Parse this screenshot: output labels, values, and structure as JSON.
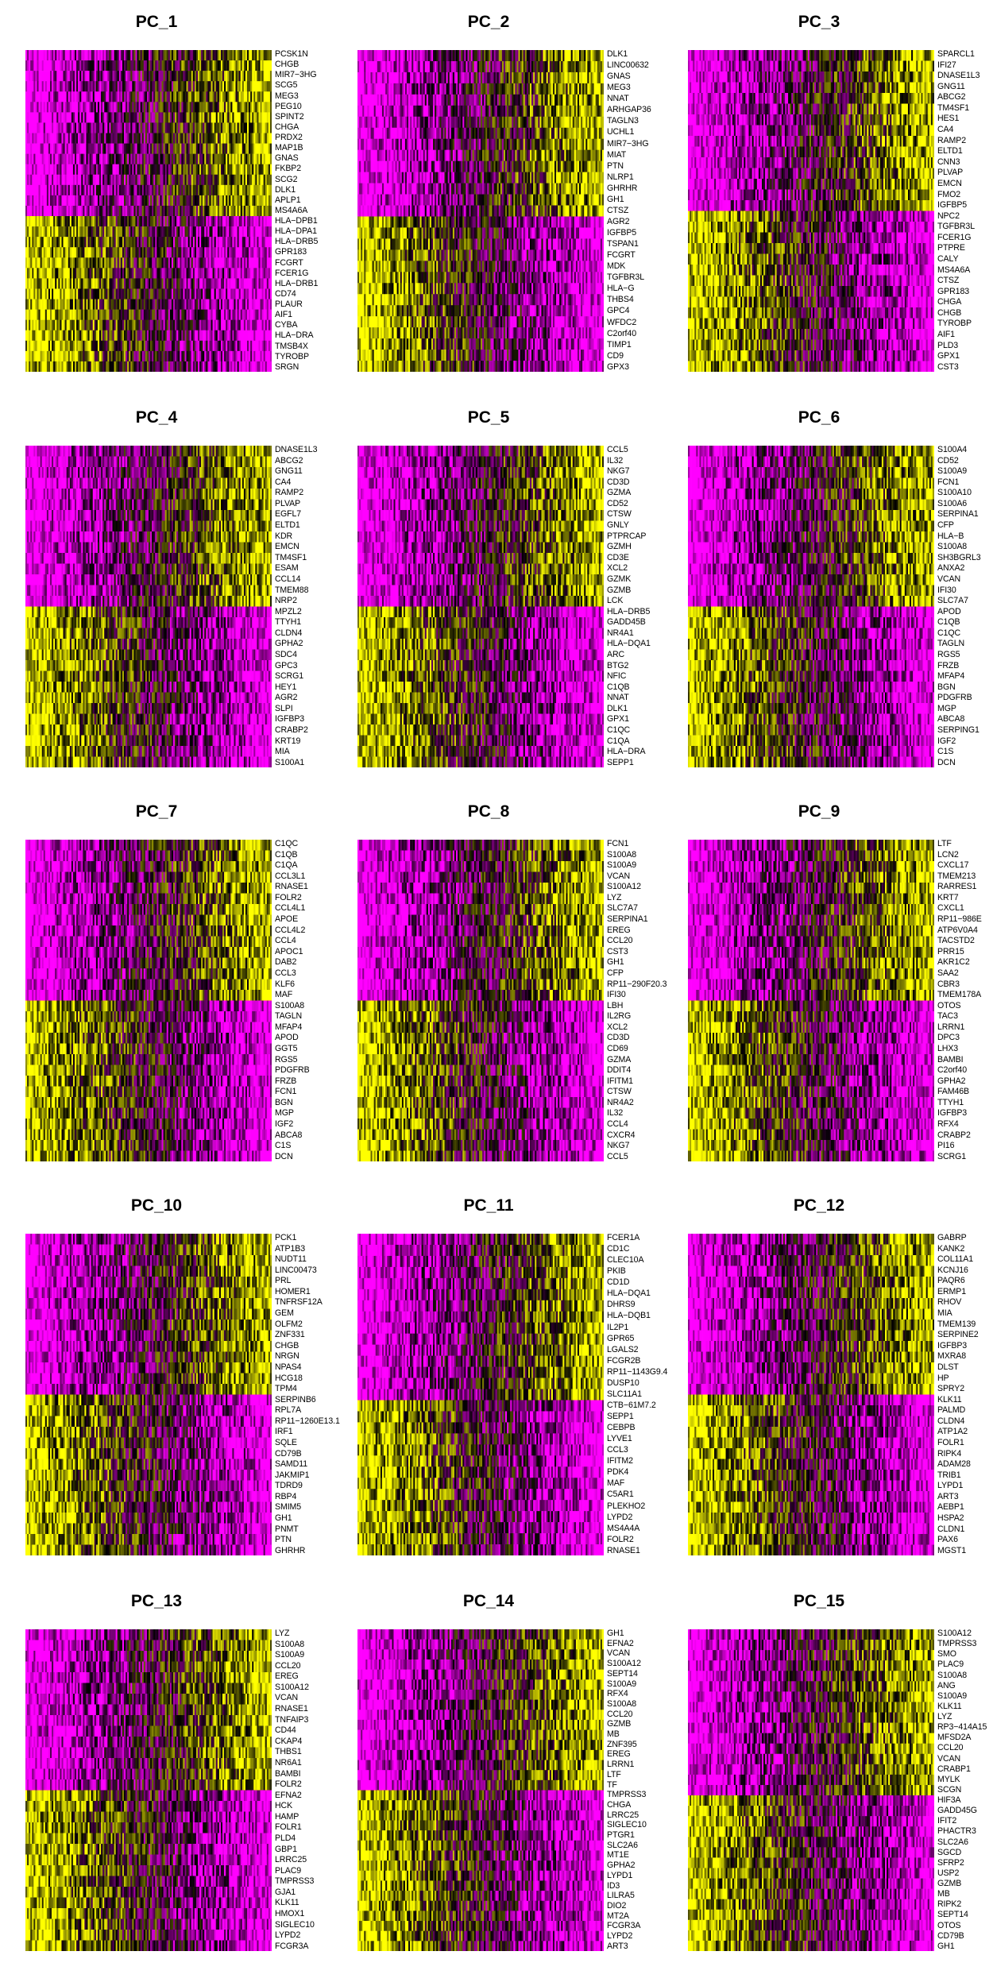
{
  "chart_data": {
    "type": "heatmap",
    "colorscale": [
      "#ff00ff",
      "#000000",
      "#ffff00"
    ],
    "panels": [
      {
        "title": "PC_1",
        "genes": [
          "PCSK1N",
          "CHGB",
          "MIR7−3HG",
          "SCG5",
          "MEG3",
          "PEG10",
          "SPINT2",
          "CHGA",
          "PRDX2",
          "MAP1B",
          "GNAS",
          "FKBP2",
          "SCG2",
          "DLK1",
          "APLP1",
          "MS4A6A",
          "HLA−DPB1",
          "HLA−DPA1",
          "HLA−DRB5",
          "GPR183",
          "FCGRT",
          "FCER1G",
          "HLA−DRB1",
          "CD74",
          "PLAUR",
          "AIF1",
          "CYBA",
          "HLA−DRA",
          "TMSB4X",
          "TYROBP",
          "SRGN"
        ]
      },
      {
        "title": "PC_2",
        "genes": [
          "DLK1",
          "LINC00632",
          "GNAS",
          "MEG3",
          "NNAT",
          "ARHGAP36",
          "TAGLN3",
          "UCHL1",
          "MIR7−3HG",
          "MIAT",
          "PTN",
          "NLRP1",
          "GHRHR",
          "GH1",
          "CTSZ",
          "AGR2",
          "IGFBP5",
          "TSPAN1",
          "FCGRT",
          "MDK",
          "TGFBR3L",
          "HLA−G",
          "THBS4",
          "GPC4",
          "WFDC2",
          "C2orf40",
          "TIMP1",
          "CD9",
          "GPX3"
        ]
      },
      {
        "title": "PC_3",
        "genes": [
          "SPARCL1",
          "IFI27",
          "DNASE1L3",
          "GNG11",
          "ABCG2",
          "TM4SF1",
          "HES1",
          "CA4",
          "RAMP2",
          "ELTD1",
          "CNN3",
          "PLVAP",
          "EMCN",
          "FMO2",
          "IGFBP5",
          "NPC2",
          "TGFBR3L",
          "FCER1G",
          "PTPRE",
          "CALY",
          "MS4A6A",
          "CTSZ",
          "GPR183",
          "CHGA",
          "CHGB",
          "TYROBP",
          "AIF1",
          "PLD3",
          "GPX1",
          "CST3"
        ]
      },
      {
        "title": "PC_4",
        "genes": [
          "DNASE1L3",
          "ABCG2",
          "GNG11",
          "CA4",
          "RAMP2",
          "PLVAP",
          "EGFL7",
          "ELTD1",
          "KDR",
          "EMCN",
          "TM4SF1",
          "ESAM",
          "CCL14",
          "TMEM88",
          "NRP2",
          "MPZL2",
          "TTYH1",
          "CLDN4",
          "GPHA2",
          "SDC4",
          "GPC3",
          "SCRG1",
          "HEY1",
          "AGR2",
          "SLPI",
          "IGFBP3",
          "CRABP2",
          "KRT19",
          "MIA",
          "S100A1"
        ]
      },
      {
        "title": "PC_5",
        "genes": [
          "CCL5",
          "IL32",
          "NKG7",
          "CD3D",
          "GZMA",
          "CD52",
          "CTSW",
          "GNLY",
          "PTPRCAP",
          "GZMH",
          "CD3E",
          "XCL2",
          "GZMK",
          "GZMB",
          "LCK",
          "HLA−DRB5",
          "GADD45B",
          "NR4A1",
          "HLA−DQA1",
          "ARC",
          "BTG2",
          "NFIC",
          "C1QB",
          "NNAT",
          "DLK1",
          "GPX1",
          "C1QC",
          "C1QA",
          "HLA−DRA",
          "SEPP1"
        ]
      },
      {
        "title": "PC_6",
        "genes": [
          "S100A4",
          "CD52",
          "S100A9",
          "FCN1",
          "S100A10",
          "S100A6",
          "SERPINA1",
          "CFP",
          "HLA−B",
          "S100A8",
          "SH3BGRL3",
          "ANXA2",
          "VCAN",
          "IFI30",
          "SLC7A7",
          "APOD",
          "C1QB",
          "C1QC",
          "TAGLN",
          "RGS5",
          "FRZB",
          "MFAP4",
          "BGN",
          "PDGFRB",
          "MGP",
          "ABCA8",
          "SERPING1",
          "IGF2",
          "C1S",
          "DCN"
        ]
      },
      {
        "title": "PC_7",
        "genes": [
          "C1QC",
          "C1QB",
          "C1QA",
          "CCL3L1",
          "RNASE1",
          "FOLR2",
          "CCL4L1",
          "APOE",
          "CCL4L2",
          "CCL4",
          "APOC1",
          "DAB2",
          "CCL3",
          "KLF6",
          "MAF",
          "S100A8",
          "TAGLN",
          "MFAP4",
          "APOD",
          "GGT5",
          "RGS5",
          "PDGFRB",
          "FRZB",
          "FCN1",
          "BGN",
          "MGP",
          "IGF2",
          "ABCA8",
          "C1S",
          "DCN"
        ]
      },
      {
        "title": "PC_8",
        "genes": [
          "FCN1",
          "S100A8",
          "S100A9",
          "VCAN",
          "S100A12",
          "LYZ",
          "SLC7A7",
          "SERPINA1",
          "EREG",
          "CCL20",
          "CST3",
          "GH1",
          "CFP",
          "RP11−290F20.3",
          "IFI30",
          "LBH",
          "IL2RG",
          "XCL2",
          "CD3D",
          "CD69",
          "GZMA",
          "DDIT4",
          "IFITM1",
          "CTSW",
          "NR4A2",
          "IL32",
          "CCL4",
          "CXCR4",
          "NKG7",
          "CCL5"
        ]
      },
      {
        "title": "PC_9",
        "genes": [
          "LTF",
          "LCN2",
          "CXCL17",
          "TMEM213",
          "RARRES1",
          "KRT7",
          "CXCL1",
          "RP11−986E",
          "ATP6V0A4",
          "TACSTD2",
          "PRR15",
          "AKR1C2",
          "SAA2",
          "CBR3",
          "TMEM178A",
          "OTOS",
          "TAC3",
          "LRRN1",
          "DPC3",
          "LHX3",
          "BAMBI",
          "C2orf40",
          "GPHA2",
          "FAM46B",
          "TTYH1",
          "IGFBP3",
          "RFX4",
          "CRABP2",
          "PI16",
          "SCRG1"
        ]
      },
      {
        "title": "PC_10",
        "genes": [
          "PCK1",
          "ATP1B3",
          "NUDT11",
          "LINC00473",
          "PRL",
          "HOMER1",
          "TNFRSF12A",
          "GEM",
          "OLFM2",
          "ZNF331",
          "CHGB",
          "NRGN",
          "NPAS4",
          "HCG18",
          "TPM4",
          "SERPINB6",
          "RPL7A",
          "RP11−1260E13.1",
          "IRF1",
          "SQLE",
          "CD79B",
          "SAMD11",
          "JAKMIP1",
          "TDRD9",
          "RBP4",
          "SMIM5",
          "GH1",
          "PNMT",
          "PTN",
          "GHRHR"
        ]
      },
      {
        "title": "PC_11",
        "genes": [
          "FCER1A",
          "CD1C",
          "CLEC10A",
          "PKIB",
          "CD1D",
          "HLA−DQA1",
          "DHRS9",
          "HLA−DQB1",
          "IL2P1",
          "GPR65",
          "LGALS2",
          "FCGR2B",
          "RP11−1143G9.4",
          "DUSP10",
          "SLC11A1",
          "CTB−61M7.2",
          "SEPP1",
          "CEBPB",
          "LYVE1",
          "CCL3",
          "IFITM2",
          "PDK4",
          "MAF",
          "C5AR1",
          "PLEKHO2",
          "LYPD2",
          "MS4A4A",
          "FOLR2",
          "RNASE1"
        ]
      },
      {
        "title": "PC_12",
        "genes": [
          "GABRP",
          "KANK2",
          "COL11A1",
          "KCNJ16",
          "PAQR6",
          "ERMP1",
          "RHOV",
          "MIA",
          "TMEM139",
          "SERPINE2",
          "IGFBP3",
          "MXRA8",
          "DLST",
          "HP",
          "SPRY2",
          "KLK11",
          "PALMD",
          "CLDN4",
          "ATP1A2",
          "FOLR1",
          "RIPK4",
          "ADAM28",
          "TRIB1",
          "LYPD1",
          "ART3",
          "AEBP1",
          "HSPA2",
          "CLDN1",
          "PAX6",
          "MGST1"
        ]
      },
      {
        "title": "PC_13",
        "genes": [
          "LYZ",
          "S100A8",
          "S100A9",
          "CCL20",
          "EREG",
          "S100A12",
          "VCAN",
          "RNASE1",
          "TNFAIP3",
          "CD44",
          "CKAP4",
          "THBS1",
          "NR6A1",
          "BAMBI",
          "FOLR2",
          "EFNA2",
          "HCK",
          "HAMP",
          "FOLR1",
          "PLD4",
          "GBP1",
          "LRRC25",
          "PLAC9",
          "TMPRSS3",
          "GJA1",
          "KLK11",
          "HMOX1",
          "SIGLEC10",
          "LYPD2",
          "FCGR3A"
        ]
      },
      {
        "title": "PC_14",
        "genes": [
          "GH1",
          "EFNA2",
          "VCAN",
          "S100A12",
          "SEPT14",
          "S100A9",
          "RFX4",
          "S100A8",
          "CCL20",
          "GZMB",
          "MB",
          "ZNF395",
          "EREG",
          "LRRN1",
          "LTF",
          "TF",
          "TMPRSS3",
          "CHGA",
          "LRRC25",
          "SIGLEC10",
          "PTGR1",
          "SLC2A6",
          "MT1E",
          "GPHA2",
          "LYPD1",
          "ID3",
          "LILRA5",
          "DIO2",
          "MT2A",
          "FCGR3A",
          "LYPD2",
          "ART3"
        ]
      },
      {
        "title": "PC_15",
        "genes": [
          "S100A12",
          "TMPRSS3",
          "SMO",
          "PLAC9",
          "S100A8",
          "ANG",
          "S100A9",
          "KLK11",
          "LYZ",
          "RP3−414A15",
          "MFSD2A",
          "CCL20",
          "VCAN",
          "CRABP1",
          "MYLK",
          "SCGN",
          "HIF3A",
          "GADD45G",
          "IFIT2",
          "PHACTR3",
          "SLC2A6",
          "SGCD",
          "SFRP2",
          "USP2",
          "GZMB",
          "MB",
          "RIPK2",
          "SEPT14",
          "OTOS",
          "CD79B",
          "GH1"
        ]
      }
    ]
  }
}
